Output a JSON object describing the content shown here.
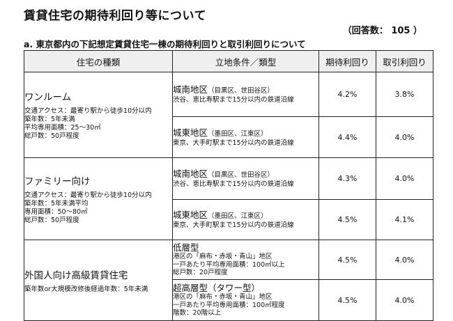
{
  "page": {
    "title": "賃貸住宅の期待利回り等について",
    "response_count": "（回答数： 105 ）",
    "subtitle": "a. 東京都内の下記想定賃貸住宅一棟の期待利回りと取引利回りについて"
  },
  "table": {
    "headers": [
      "住宅の種類",
      "立地条件／類型",
      "期待利回り",
      "取引利回り"
    ],
    "types": [
      {
        "name": "ワンルーム",
        "details": [
          "交通アクセス：最寄り駅から徒歩10分以内",
          "築年数：5年未満",
          "平均専用面積：25〜30㎡",
          "総戸数：50戸程度"
        ],
        "rows": [
          {
            "loc_name": "城南地区",
            "loc_sub": "（目黒区、世田谷区）",
            "loc_desc": [
              "渋谷、恵比寿駅まで15分以内の鉄道沿線"
            ],
            "expected": "4.2%",
            "transaction": "3.8%"
          },
          {
            "loc_name": "城東地区",
            "loc_sub": "（墨田区、江東区）",
            "loc_desc": [
              "東京、大手町駅まで15分以内の鉄道沿線"
            ],
            "expected": "4.4%",
            "transaction": "4.0%"
          }
        ]
      },
      {
        "name": "ファミリー向け",
        "details": [
          "交通アクセス：最寄り駅から徒歩10分以内",
          "築年数：5年未満平均",
          "専用面積：50〜80㎡",
          "総戸数：50戸程度"
        ],
        "rows": [
          {
            "loc_name": "城南地区",
            "loc_sub": "（目黒区、世田谷区）",
            "loc_desc": [
              "渋谷、恵比寿駅まで15分以内の鉄道沿線"
            ],
            "expected": "4.3%",
            "transaction": "4.0%"
          },
          {
            "loc_name": "城東地区",
            "loc_sub": "（墨田区、江東区）",
            "loc_desc": [
              "東京、大手町駅まで15分以内の鉄道沿線"
            ],
            "expected": "4.5%",
            "transaction": "4.1%"
          }
        ]
      },
      {
        "name": "外国人向け高級賃貸住宅",
        "details": [
          "築年数or大規模改修後経過年数：5年未満"
        ],
        "rows": [
          {
            "loc_name": "低層型",
            "loc_sub": "",
            "loc_desc": [
              "港区の「麻布・赤坂・青山」地区",
              "一戸あたり平均専用面積：100㎡以上",
              "総戸数：20戸程度"
            ],
            "expected": "4.5%",
            "transaction": "4.0%"
          },
          {
            "loc_name": "超高層型（タワー型）",
            "loc_sub": "",
            "loc_desc": [
              "港区の「麻布・赤坂・青山」地区",
              "一戸あたり平均専用面積：100㎡程度",
              "階数：20階以上"
            ],
            "expected": "4.5%",
            "transaction": "4.0%"
          }
        ]
      }
    ]
  }
}
